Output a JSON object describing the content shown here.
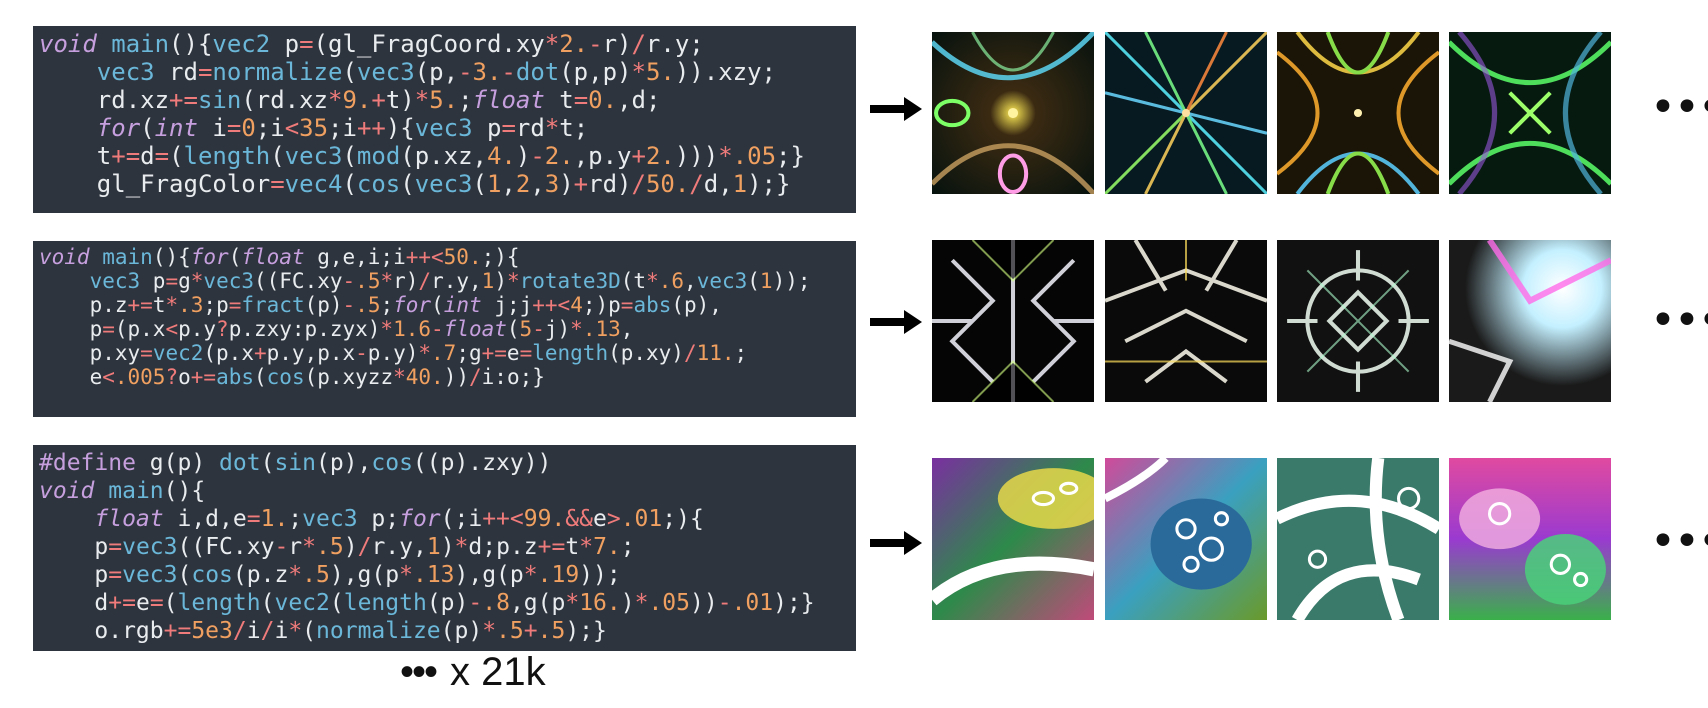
{
  "rows": [
    {
      "code": [
        "void main(){vec2 p=(gl_FragCoord.xy*2.-r)/r.y;",
        "    vec3 rd=normalize(vec3(p,-3.-dot(p,p)*5.)).xzy;",
        "    rd.xz+=sin(rd.xz*9.+t)*5.;float t=0.,d;",
        "    for(int i=0;i<35;i++){vec3 p=rd*t;",
        "    t+=d=(length(vec3(mod(p.xz,4.)-2.,p.y+2.)))*.05;}",
        "    gl_FragColor=vec4(cos(vec3(1,2,3)+rd)/50./d,1);}"
      ],
      "more": "•••"
    },
    {
      "code": [
        "void main(){for(float g,e,i;i++<50.;){",
        "    vec3 p=g*vec3((FC.xy-.5*r)/r.y,1)*rotate3D(t*.6,vec3(1));",
        "    p.z+=t*.3;p=fract(p)-.5;for(int j;j++<4;)p=abs(p),",
        "    p=(p.x<p.y?p.zxy:p.zyx)*1.6-float(5-j)*.13,",
        "    p.xy=vec2(p.x+p.y,p.x-p.y)*.7;g+=e=length(p.xy)/11.;",
        "    e<.005?o+=abs(cos(p.xyzz*40.))/i:o;}"
      ],
      "more": "•••"
    },
    {
      "code": [
        "#define g(p) dot(sin(p),cos((p).zxy))",
        "void main(){",
        "    float i,d,e=1.;vec3 p;for(;i++<99.&&e>.01;){",
        "    p=vec3((FC.xy-r*.5)/r.y,1)*d;p.z+=t*7.;",
        "    p=vec3(cos(p.z*.5),g(p*.13),g(p*.19));",
        "    d+=e=(length(vec2(length(p)-.8,g(p*16.)*.05))-.01);}",
        "    o.rgb+=5e3/i/i*(normalize(p)*.5+.5);}"
      ],
      "more": "•••"
    }
  ],
  "caption": {
    "dots": "•••",
    "count": "x 21k"
  },
  "colors": {
    "code_bg": "#2e343d",
    "keyword": "#c6a0de",
    "function": "#6ab7d9",
    "number": "#f0a060",
    "operator": "#f07b7b"
  }
}
